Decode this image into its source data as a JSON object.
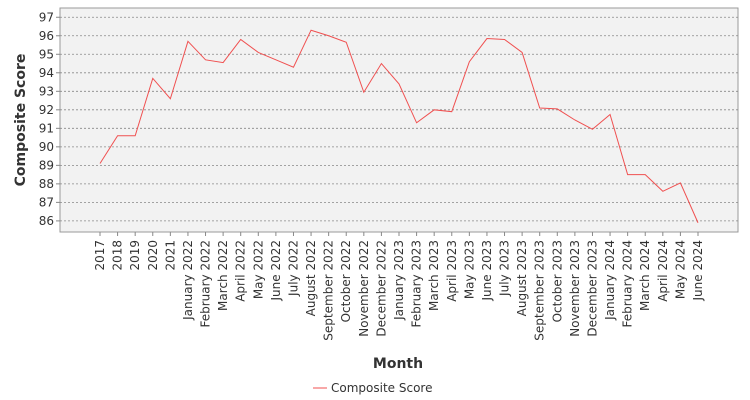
{
  "chart_data": {
    "type": "line",
    "x_label": "Month",
    "y_label": "Composite Score",
    "categories": [
      "2017",
      "2018",
      "2019",
      "2020",
      "2021",
      "January 2022",
      "February 2022",
      "March 2022",
      "April 2022",
      "May 2022",
      "June 2022",
      "July 2022",
      "August 2022",
      "September 2022",
      "October 2022",
      "November 2022",
      "December 2022",
      "January 2023",
      "February 2023",
      "March 2023",
      "April 2023",
      "May 2023",
      "June 2023",
      "July 2023",
      "August 2023",
      "September 2023",
      "October 2023",
      "November 2023",
      "December 2023",
      "January 2024",
      "February 2024",
      "March 2024",
      "April 2024",
      "May 2024",
      "June 2024"
    ],
    "series": [
      {
        "name": "Composite Score",
        "color": "#f05050",
        "values": [
          89.1,
          90.6,
          90.6,
          93.7,
          92.6,
          95.7,
          94.7,
          94.55,
          95.8,
          95.1,
          94.7,
          94.3,
          96.3,
          96.0,
          95.65,
          92.95,
          94.5,
          93.4,
          91.3,
          92.0,
          91.9,
          94.6,
          95.85,
          95.8,
          95.1,
          92.1,
          92.05,
          91.45,
          90.95,
          91.75,
          88.5,
          88.5,
          87.6,
          88.05,
          85.9
        ]
      }
    ],
    "ylim": [
      85.4,
      97.5
    ],
    "yticks": [
      86,
      87,
      88,
      89,
      90,
      91,
      92,
      93,
      94,
      95,
      96,
      97
    ],
    "grid": true,
    "legend": "bottom"
  }
}
